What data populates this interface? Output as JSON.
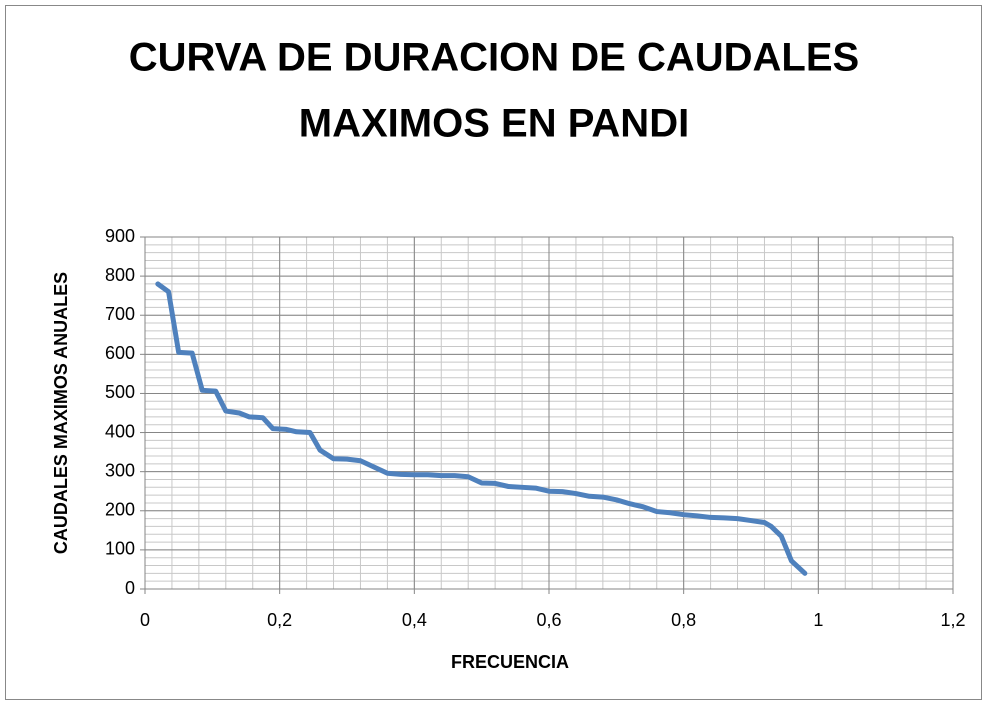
{
  "chart_data": {
    "type": "line",
    "title": [
      "CURVA DE DURACION DE CAUDALES",
      "MAXIMOS EN PANDI"
    ],
    "x_label": "FRECUENCIA",
    "y_label": "CAUDALES MAXIMOS ANUALES",
    "x": [
      0.019,
      0.035,
      0.05,
      0.07,
      0.085,
      0.105,
      0.12,
      0.14,
      0.155,
      0.175,
      0.19,
      0.21,
      0.225,
      0.245,
      0.26,
      0.28,
      0.3,
      0.32,
      0.34,
      0.36,
      0.38,
      0.4,
      0.42,
      0.44,
      0.46,
      0.48,
      0.5,
      0.52,
      0.54,
      0.56,
      0.58,
      0.6,
      0.62,
      0.64,
      0.66,
      0.68,
      0.7,
      0.72,
      0.74,
      0.76,
      0.78,
      0.8,
      0.82,
      0.84,
      0.86,
      0.88,
      0.9,
      0.92,
      0.93,
      0.945,
      0.96,
      0.98
    ],
    "series": [
      {
        "color": "#4f81bd",
        "values": [
          780,
          760,
          605,
          603,
          508,
          506,
          455,
          450,
          440,
          438,
          410,
          408,
          402,
          400,
          355,
          333,
          332,
          328,
          312,
          296,
          293,
          292,
          292,
          290,
          290,
          287,
          271,
          270,
          262,
          260,
          258,
          250,
          249,
          244,
          237,
          235,
          228,
          218,
          210,
          198,
          195,
          190,
          187,
          183,
          182,
          180,
          175,
          170,
          160,
          135,
          72,
          40
        ]
      }
    ],
    "xlim": [
      0,
      1.2
    ],
    "xticks": [
      0,
      {
        "value": 0.2,
        "label": "0,2"
      },
      {
        "value": 0.4,
        "label": "0,4"
      },
      {
        "value": 0.6,
        "label": "0,6"
      },
      {
        "value": 0.8,
        "label": "0,8"
      },
      1,
      {
        "value": 1.2,
        "label": "1,2"
      }
    ],
    "ylim": [
      0,
      900
    ],
    "yticks": [
      0,
      100,
      200,
      300,
      400,
      500,
      600,
      700,
      800,
      900
    ],
    "grid": true,
    "minor_grid_step": {
      "x": 0.04,
      "y": 20
    }
  }
}
